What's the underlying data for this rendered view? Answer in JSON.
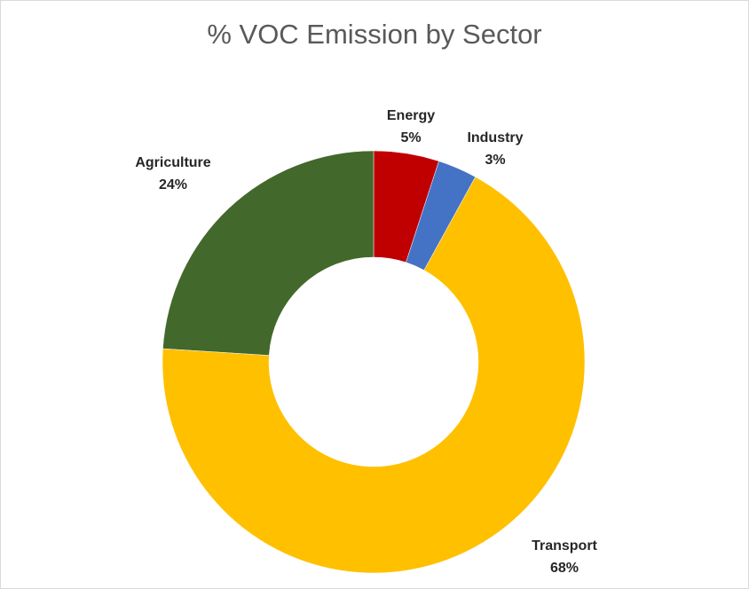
{
  "chart_data": {
    "type": "pie",
    "variant": "doughnut",
    "title": "% VOC Emission by Sector",
    "legend": "none",
    "categories": [
      "Energy",
      "Industry",
      "Transport",
      "Agriculture"
    ],
    "values": [
      5,
      3,
      68,
      24
    ],
    "data_labels": [
      "5%",
      "3%",
      "68%",
      "24%"
    ],
    "colors": [
      "#c00000",
      "#4472c4",
      "#ffc000",
      "#43682b"
    ]
  }
}
